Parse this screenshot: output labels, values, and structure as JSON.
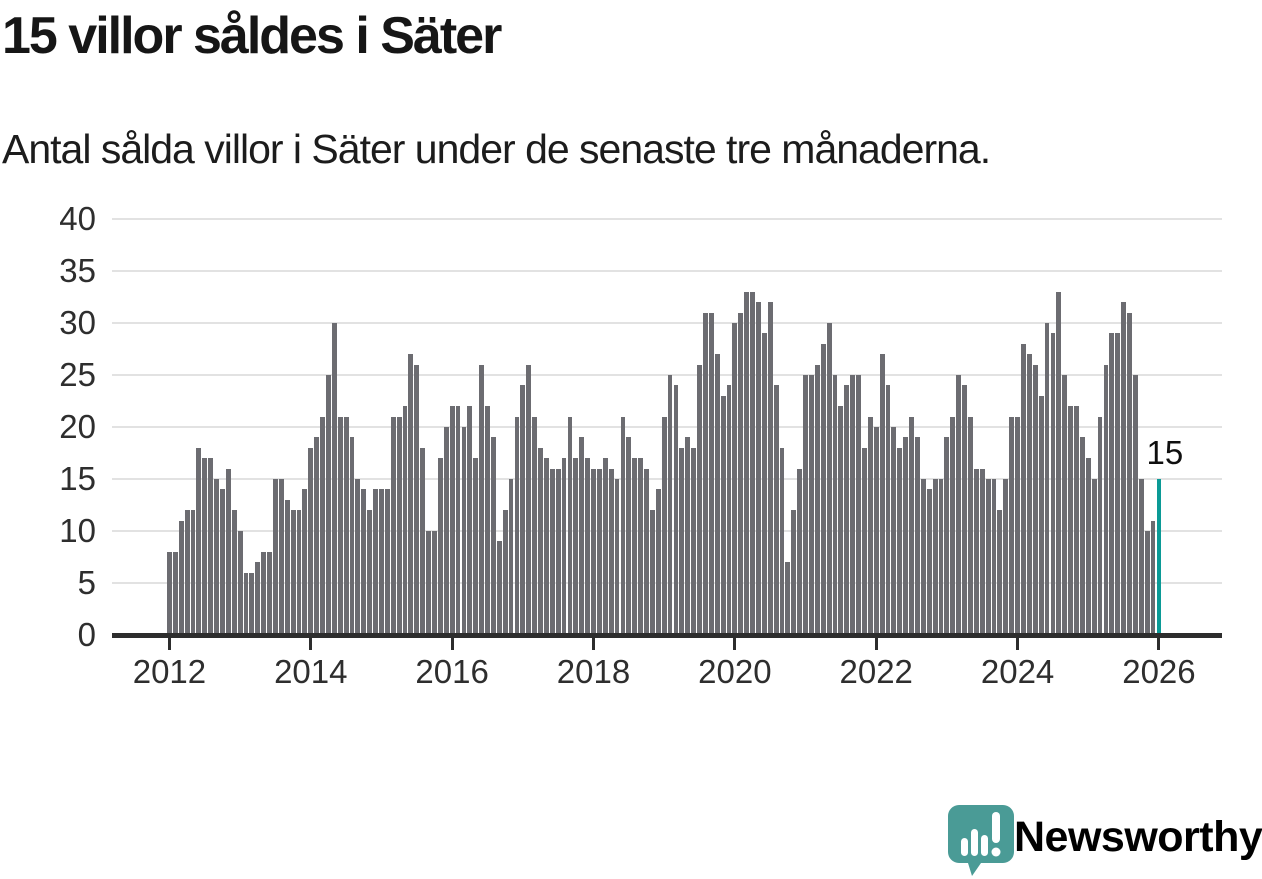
{
  "header": {
    "title": "15 villor såldes i Säter",
    "subtitle": "Antal sålda villor i Säter under de senaste tre månaderna."
  },
  "footer": {
    "brand": "Newsworthy"
  },
  "colors": {
    "bar": "#6C6C71",
    "highlight": "#0B9A96",
    "gridline": "#E2E2E2",
    "axis": "#2D2D2D",
    "axis_text": "#2E2E2E",
    "logo_teal": "#4A9B96"
  },
  "chart_data": {
    "type": "bar",
    "title": "15 villor såldes i Säter",
    "subtitle": "Antal sålda villor i Säter under de senaste tre månaderna.",
    "x_period": "monthly",
    "x_start": "2012-01",
    "x_end": "2026-01",
    "x_tick_labels": [
      "2012",
      "2014",
      "2016",
      "2018",
      "2020",
      "2022",
      "2024",
      "2026"
    ],
    "y_ticks": [
      0,
      5,
      10,
      15,
      20,
      25,
      30,
      35,
      40
    ],
    "ylim": [
      0,
      40
    ],
    "grid": "horizontal",
    "legend": "none",
    "highlight_index": "last",
    "highlight_label": "15",
    "values": [
      8,
      8,
      11,
      12,
      12,
      18,
      17,
      17,
      15,
      14,
      16,
      12,
      10,
      6,
      6,
      7,
      8,
      8,
      15,
      15,
      13,
      12,
      12,
      14,
      18,
      19,
      21,
      25,
      30,
      21,
      21,
      19,
      15,
      14,
      12,
      14,
      14,
      14,
      21,
      21,
      22,
      27,
      26,
      18,
      10,
      10,
      17,
      20,
      22,
      22,
      20,
      22,
      17,
      26,
      22,
      19,
      9,
      12,
      15,
      21,
      24,
      26,
      21,
      18,
      17,
      16,
      16,
      17,
      21,
      17,
      19,
      17,
      16,
      16,
      17,
      16,
      15,
      21,
      19,
      17,
      17,
      16,
      12,
      14,
      21,
      25,
      24,
      18,
      19,
      18,
      26,
      31,
      31,
      27,
      23,
      24,
      30,
      31,
      33,
      33,
      32,
      29,
      32,
      24,
      18,
      7,
      12,
      16,
      25,
      25,
      26,
      28,
      30,
      25,
      22,
      24,
      25,
      25,
      18,
      21,
      20,
      27,
      24,
      20,
      18,
      19,
      21,
      19,
      15,
      14,
      15,
      15,
      19,
      21,
      25,
      24,
      21,
      16,
      16,
      15,
      15,
      12,
      15,
      21,
      21,
      28,
      27,
      26,
      23,
      30,
      29,
      33,
      25,
      22,
      22,
      19,
      17,
      15,
      21,
      26,
      29,
      29,
      32,
      31,
      25,
      15,
      10,
      11,
      15
    ]
  }
}
